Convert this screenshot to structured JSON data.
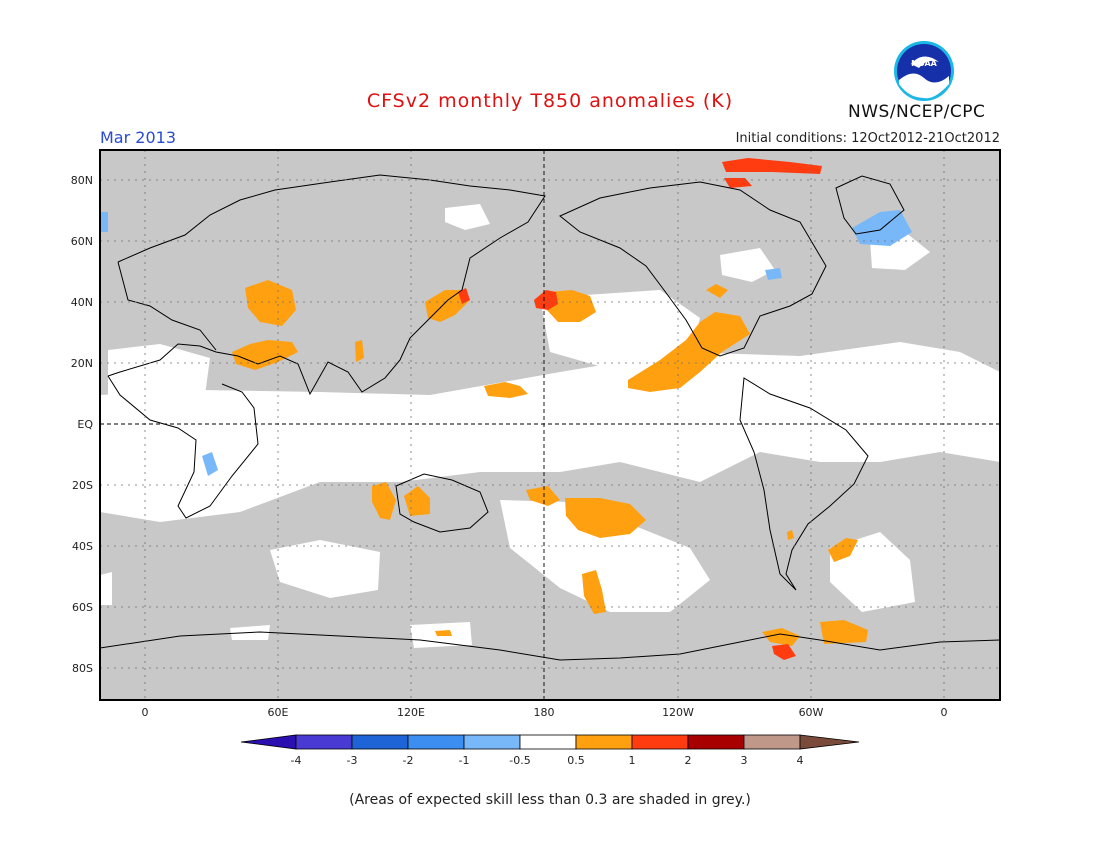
{
  "header": {
    "title": "CFSv2 monthly T850 anomalies (K)",
    "month": "Mar 2013",
    "initial_conditions": "Initial conditions: 12Oct2012-21Oct2012",
    "agency": "NWS/NCEP/CPC",
    "logo_text": "NOAA"
  },
  "map": {
    "lat_labels": [
      "80N",
      "60N",
      "40N",
      "20N",
      "EQ",
      "20S",
      "40S",
      "60S",
      "80S"
    ],
    "lon_labels": [
      "0",
      "60E",
      "120E",
      "180",
      "120W",
      "60W",
      "0"
    ],
    "background_color": "#c8c8c8",
    "land_outline_color": "#000000"
  },
  "legend": {
    "labels": [
      "-4",
      "-3",
      "-2",
      "-1",
      "-0.5",
      "0.5",
      "1",
      "2",
      "3",
      "4"
    ],
    "colors": [
      "#2b0fb0",
      "#4a3ad4",
      "#1e64d6",
      "#3c8ef0",
      "#78b8f8",
      "#ffffff",
      "#ffa010",
      "#ff3c10",
      "#a80000",
      "#c0988a",
      "#7a4a3a"
    ]
  },
  "footer": {
    "note": "(Areas of expected skill less than 0.3 are shaded in grey.)"
  }
}
